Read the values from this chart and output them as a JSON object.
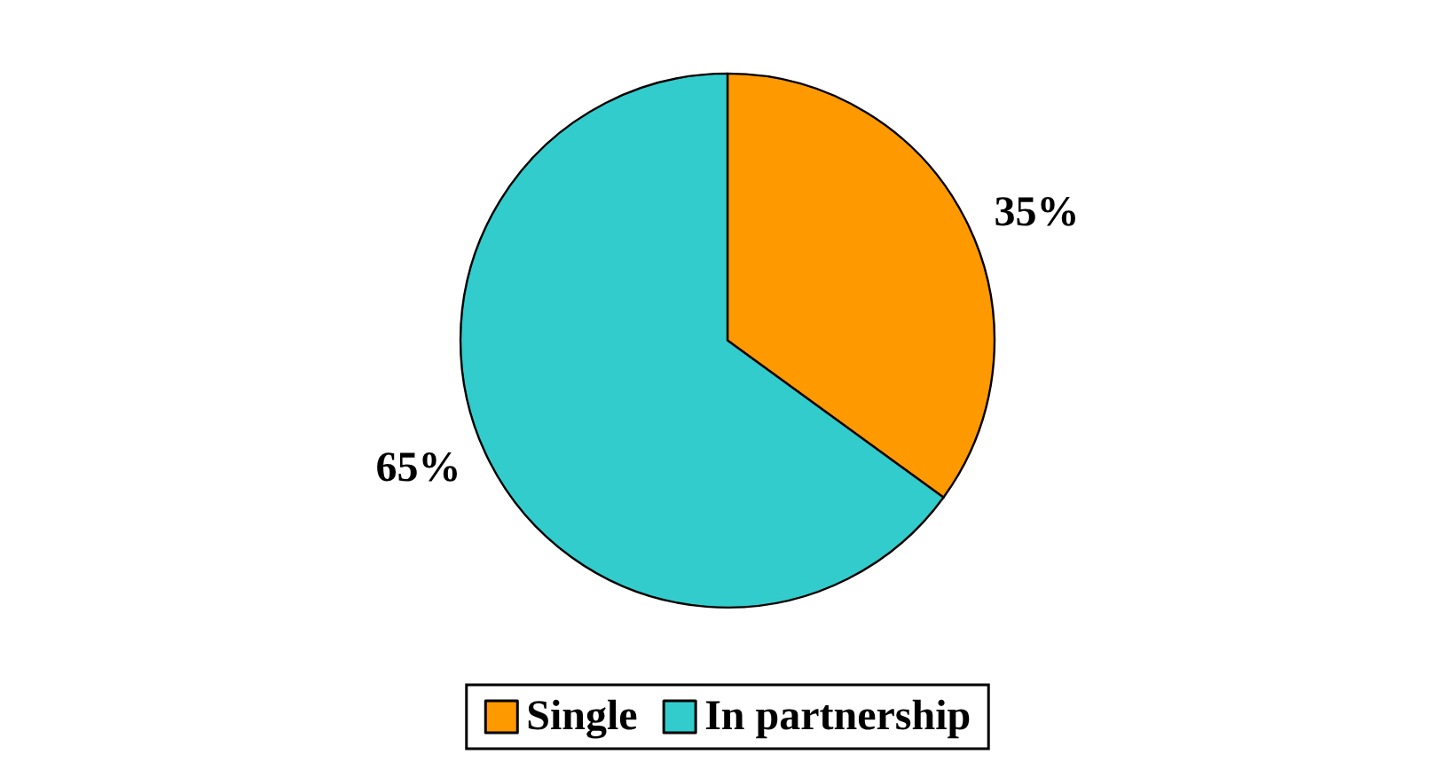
{
  "chart_data": {
    "type": "pie",
    "categories": [
      "Single",
      "In partnership"
    ],
    "values": [
      35,
      65
    ],
    "colors": [
      "#ff9900",
      "#33cccc"
    ],
    "value_labels": [
      "35%",
      "65%"
    ],
    "legend": "bottom"
  }
}
